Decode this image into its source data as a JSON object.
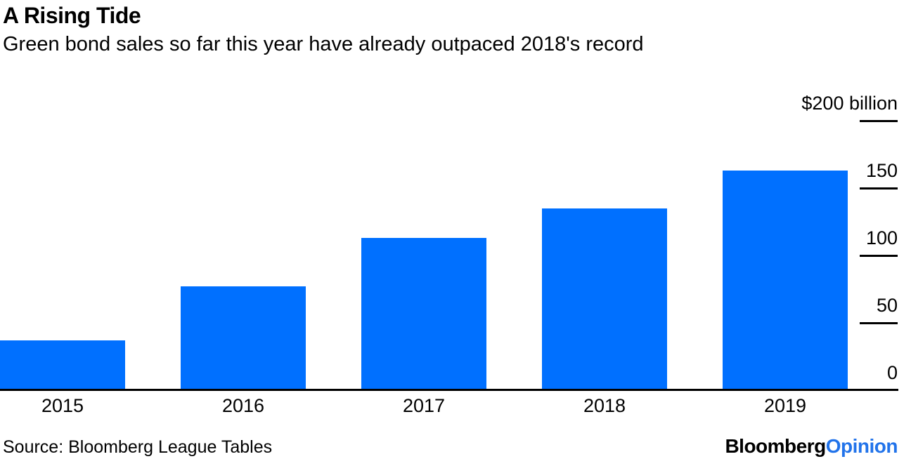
{
  "header": {
    "title": "A Rising Tide",
    "subtitle": "Green bond sales so far this year have already outpaced 2018's record"
  },
  "chart_data": {
    "type": "bar",
    "title": "A Rising Tide",
    "subtitle": "Green bond sales so far this year have already outpaced 2018's record",
    "categories": [
      "2015",
      "2016",
      "2017",
      "2018",
      "2019"
    ],
    "values": [
      37,
      77,
      113,
      135,
      163
    ],
    "unit": "$ billion",
    "ylim": [
      0,
      200
    ],
    "yticks": [
      {
        "value": 200,
        "label": "$200 billion"
      },
      {
        "value": 150,
        "label": "150"
      },
      {
        "value": 100,
        "label": "100"
      },
      {
        "value": 50,
        "label": "50"
      },
      {
        "value": 0,
        "label": "0"
      }
    ],
    "axis_side": "right",
    "grid": false,
    "legend": false,
    "bar_color": "#0070ff"
  },
  "footer": {
    "source": "Source: Bloomberg League Tables",
    "logo": {
      "bloomberg": "Bloomberg",
      "opinion": "Opinion",
      "opinion_color": "#2173ea"
    }
  }
}
